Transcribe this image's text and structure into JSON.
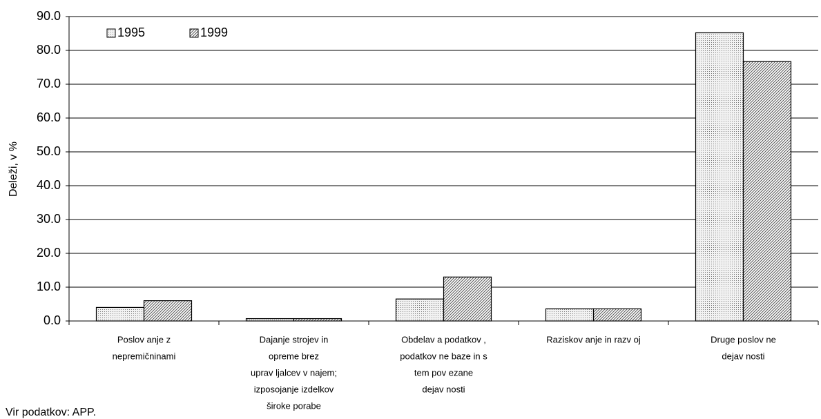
{
  "chart_data": {
    "type": "bar",
    "y_label": "Deleži, v %",
    "source": "Vir podatkov: APP.",
    "categories": [
      [
        "Poslov anje z",
        "nepremičninami"
      ],
      [
        "Dajanje strojev  in",
        "opreme brez",
        "uprav ljalcev  v  najem;",
        "izposojanje izdelkov",
        "široke porabe"
      ],
      [
        "Obdelav a podatkov ,",
        "podatkov ne baze in s",
        "tem pov ezane",
        "dejav nosti"
      ],
      [
        "Raziskov anje in razv oj"
      ],
      [
        "Druge poslov ne",
        "dejav nosti"
      ]
    ],
    "series": [
      {
        "name": "1995",
        "color": "#f2f2f2",
        "pattern": "dots",
        "values": [
          4.0,
          0.7,
          6.5,
          3.6,
          85.2
        ]
      },
      {
        "name": "1999",
        "color": "#ffffff",
        "pattern": "hatch",
        "values": [
          6.0,
          0.7,
          13.0,
          3.6,
          76.7
        ]
      }
    ],
    "ylim": [
      0,
      90
    ],
    "yticks": [
      {
        "value": 0,
        "label": "0.0"
      },
      {
        "value": 10,
        "label": "10.0"
      },
      {
        "value": 20,
        "label": "20.0"
      },
      {
        "value": 30,
        "label": "30.0"
      },
      {
        "value": 40,
        "label": "40.0"
      },
      {
        "value": 50,
        "label": "50.0"
      },
      {
        "value": 60,
        "label": "60.0"
      },
      {
        "value": 70,
        "label": "70.0"
      },
      {
        "value": 80,
        "label": "80.0"
      },
      {
        "value": 90,
        "label": "90.0"
      }
    ],
    "grid": true,
    "legend": "top-left"
  }
}
